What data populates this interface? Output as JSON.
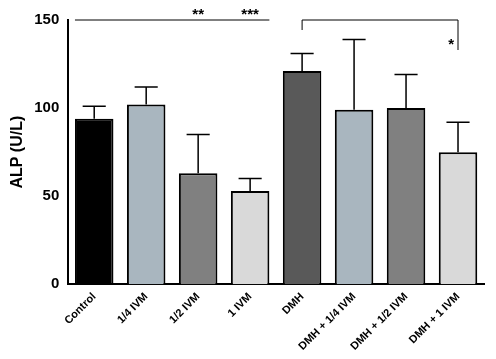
{
  "chart_data": {
    "type": "bar",
    "y_label": "ALP (U/L)",
    "categories": [
      "Control",
      "1/4 IVM",
      "1/2 IVM",
      "1 IVM",
      "DMH",
      "DMH + 1/4 IVM",
      "DMH + 1/2 IVM",
      "DMH + 1 IVM"
    ],
    "values": [
      94,
      102,
      63,
      53,
      121,
      99,
      100,
      75
    ],
    "errors": [
      7,
      10,
      22,
      7,
      10,
      40,
      19,
      17
    ],
    "colors": [
      "#000000",
      "#a9b6bf",
      "#808080",
      "#d9d9d9",
      "#595959",
      "#a9b6bf",
      "#808080",
      "#d9d9d9"
    ],
    "ylim": [
      0,
      150
    ],
    "yticks": [
      0,
      50,
      100,
      150
    ],
    "grid": false,
    "brackets": [
      {
        "from": "Control",
        "to": "1 IVM",
        "labels": [
          {
            "text": "**",
            "category": "1/2 IVM"
          },
          {
            "text": "***",
            "category": "1 IVM"
          }
        ]
      },
      {
        "from": "DMH",
        "to": "DMH + 1 IVM",
        "labels": [
          {
            "text": "*",
            "category": "DMH + 1 IVM"
          }
        ]
      }
    ]
  }
}
